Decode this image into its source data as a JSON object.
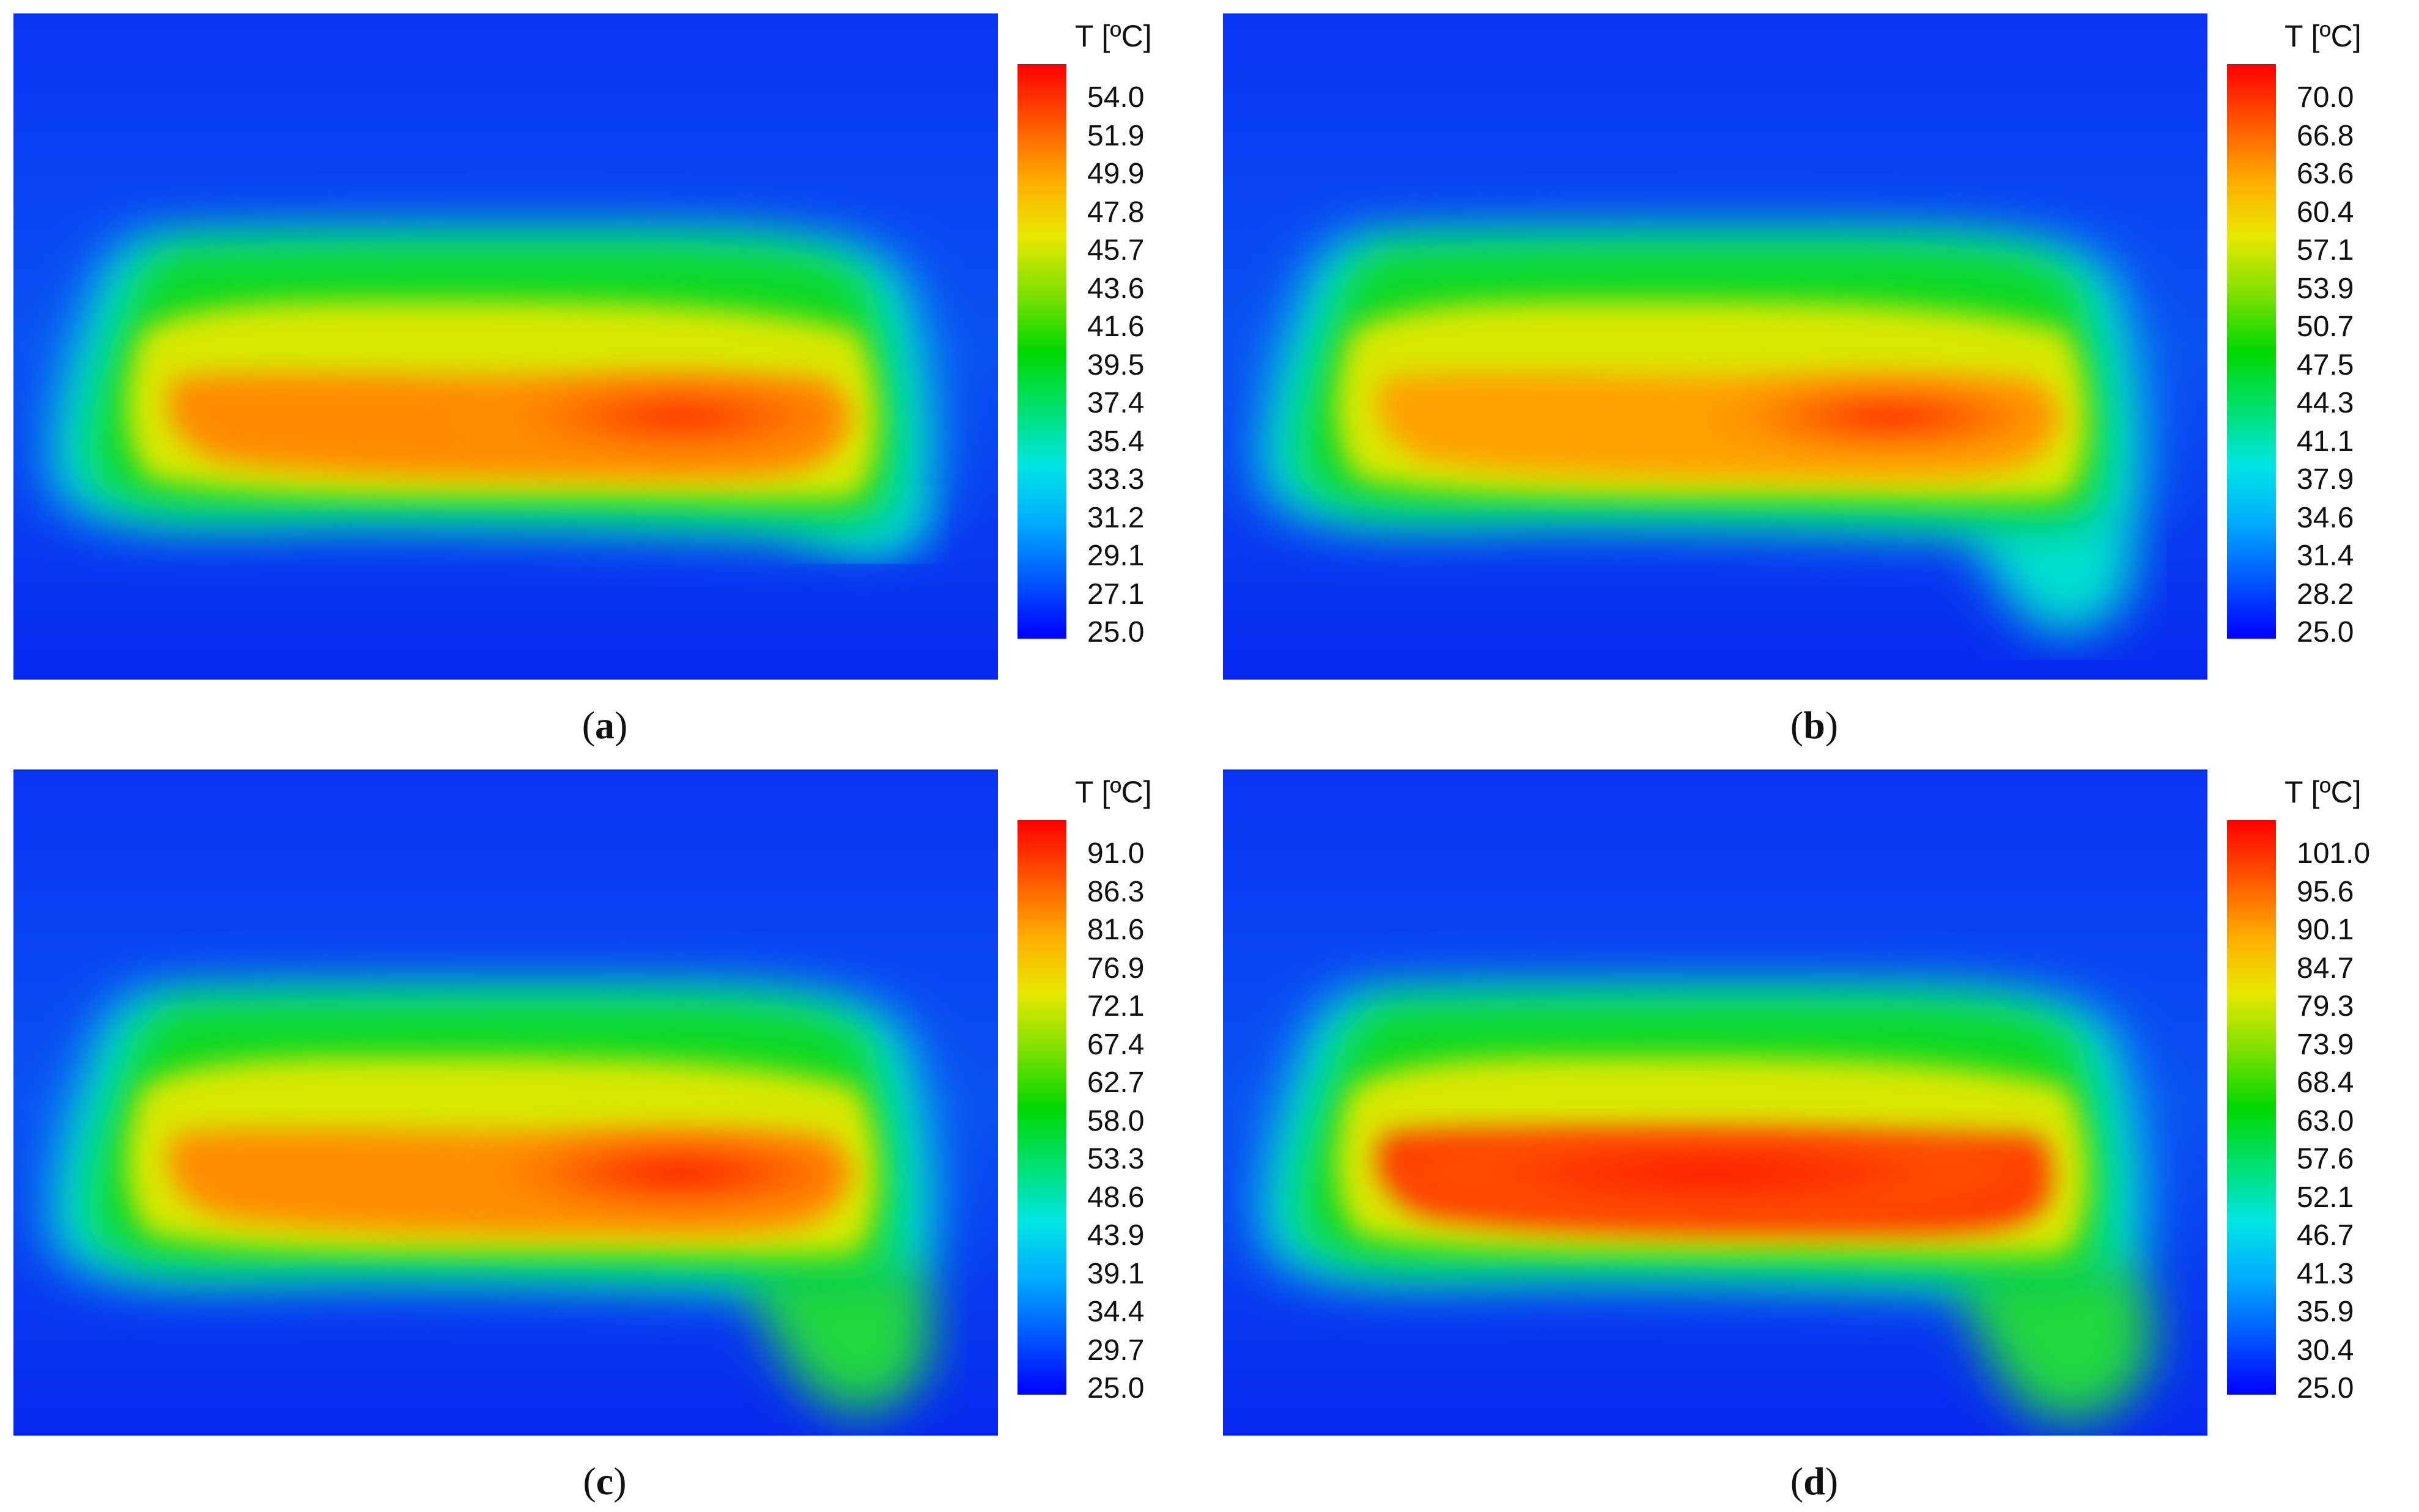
{
  "colormap": [
    "#0000ff",
    "#0055ff",
    "#00aaff",
    "#00e5e5",
    "#00e070",
    "#00d800",
    "#7fe000",
    "#e8e800",
    "#ffaa00",
    "#ff5500",
    "#ff0000"
  ],
  "chart_data": [
    {
      "type": "heatmap",
      "panel_label": "a",
      "colorbar_title": "T [ºC]",
      "vmin": 25.0,
      "vmax": 54.0,
      "colorbar_ticks": [
        "54.0",
        "51.9",
        "49.9",
        "47.8",
        "45.7",
        "43.6",
        "41.6",
        "39.5",
        "37.4",
        "35.4",
        "33.3",
        "31.2",
        "29.1",
        "27.1",
        "25.0"
      ]
    },
    {
      "type": "heatmap",
      "panel_label": "b",
      "colorbar_title": "T [ºC]",
      "vmin": 25.0,
      "vmax": 70.0,
      "colorbar_ticks": [
        "70.0",
        "66.8",
        "63.6",
        "60.4",
        "57.1",
        "53.9",
        "50.7",
        "47.5",
        "44.3",
        "41.1",
        "37.9",
        "34.6",
        "31.4",
        "28.2",
        "25.0"
      ]
    },
    {
      "type": "heatmap",
      "panel_label": "c",
      "colorbar_title": "T [ºC]",
      "vmin": 25.0,
      "vmax": 91.0,
      "colorbar_ticks": [
        "91.0",
        "86.3",
        "81.6",
        "76.9",
        "72.1",
        "67.4",
        "62.7",
        "58.0",
        "53.3",
        "48.6",
        "43.9",
        "39.1",
        "34.4",
        "29.7",
        "25.0"
      ]
    },
    {
      "type": "heatmap",
      "panel_label": "d",
      "colorbar_title": "T [ºC]",
      "vmin": 25.0,
      "vmax": 101.0,
      "colorbar_ticks": [
        "101.0",
        "95.6",
        "90.1",
        "84.7",
        "79.3",
        "73.9",
        "68.4",
        "63.0",
        "57.6",
        "52.1",
        "46.7",
        "41.3",
        "35.9",
        "30.4",
        "25.0"
      ]
    }
  ]
}
